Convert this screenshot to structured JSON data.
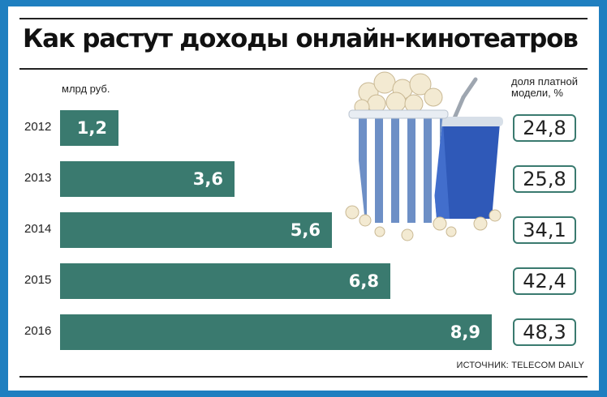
{
  "title": "Как растут доходы онлайн-кинотеатров",
  "source": "ИСТОЧНИК: TELECOM DAILY",
  "chart_data": {
    "type": "bar",
    "orientation": "horizontal",
    "title": "Как растут доходы онлайн-кинотеатров",
    "categories": [
      "2012",
      "2013",
      "2014",
      "2015",
      "2016"
    ],
    "series": [
      {
        "name": "млрд руб.",
        "values": [
          "1,2",
          "3,6",
          "5,6",
          "6,8",
          "8,9"
        ]
      },
      {
        "name": "доля платной модели, %",
        "values": [
          "24,8",
          "25,8",
          "34,1",
          "42,4",
          "48,3"
        ]
      }
    ],
    "numeric_values": [
      1.2,
      3.6,
      5.6,
      6.8,
      8.9
    ],
    "xlim": [
      0,
      9.4
    ],
    "grid": false,
    "colors": {
      "bar": "#3a7a6f",
      "frame": "#1f7fc0"
    }
  },
  "illustration": {
    "icons": [
      "popcorn-bucket-icon",
      "soda-cup-icon"
    ],
    "colors": {
      "stripe": "#6d8fc6",
      "cup": "#2f59b8",
      "popcorn": "#f3ead2"
    }
  }
}
